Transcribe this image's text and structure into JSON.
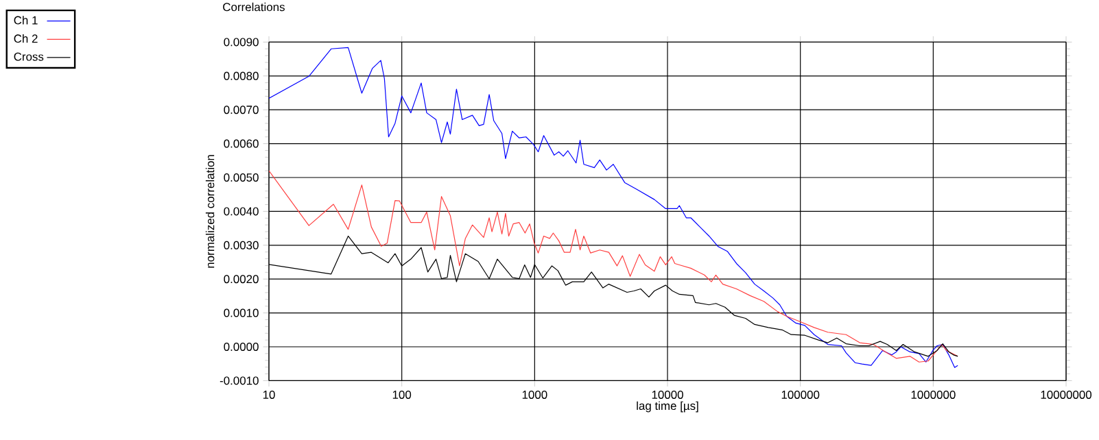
{
  "chart_data": {
    "type": "line",
    "title": "Correlations",
    "xlabel": "lag time [µs]",
    "ylabel": "normalized correlation",
    "log": "x",
    "grid": true,
    "legend": "top left",
    "xlim": [
      10,
      10000000
    ],
    "xticks": [
      10,
      100,
      1000,
      10000,
      100000,
      1000000,
      10000000
    ],
    "ylim": [
      -0.001,
      0.009
    ],
    "yticks": [
      {
        "value": -0.001,
        "label": "-0.0010"
      },
      {
        "value": 0,
        "label": "0.0000"
      },
      {
        "value": 0.001,
        "label": "0.0010"
      },
      {
        "value": 0.002,
        "label": "0.0020"
      },
      {
        "value": 0.003,
        "label": "0.0030"
      },
      {
        "value": 0.004,
        "label": "0.0040"
      },
      {
        "value": 0.005,
        "label": "0.0050"
      },
      {
        "value": 0.006,
        "label": "0.0060"
      },
      {
        "value": 0.007,
        "label": "0.0070"
      },
      {
        "value": 0.008,
        "label": "0.0080"
      },
      {
        "value": 0.009,
        "label": "0.0090"
      }
    ],
    "series": [
      {
        "name": "Ch 1",
        "color": "#0000ff",
        "x": [
          10,
          20,
          29.4,
          39.5,
          50,
          60,
          69.5,
          74,
          79.6,
          89,
          100,
          117,
          140,
          154,
          181,
          199,
          220,
          232,
          258,
          285,
          340,
          382,
          413,
          455,
          492,
          567,
          604,
          679,
          765,
          861,
          984,
          1064,
          1170,
          1403,
          1520,
          1644,
          1778,
          2051,
          2198,
          2344,
          2812,
          3090,
          3475,
          3908,
          4765,
          5808,
          7962,
          9683,
          10900,
          11800,
          12280,
          13840,
          14970,
          17540,
          20550,
          24050,
          28200,
          33040,
          38700,
          45300,
          53100,
          62200,
          70000,
          78900,
          92500,
          108000,
          127000,
          149000,
          161000,
          204000,
          221000,
          258000,
          291000,
          341000,
          416000,
          487000,
          527000,
          570000,
          668000,
          782000,
          881000,
          993000,
          1070000,
          1180000,
          1310000,
          1450000,
          1530000
        ],
        "values": [
          0.00734,
          0.00799,
          0.0088,
          0.00884,
          0.00749,
          0.00822,
          0.00846,
          0.00792,
          0.0062,
          0.0066,
          0.00741,
          0.00691,
          0.00779,
          0.00691,
          0.00671,
          0.00603,
          0.00664,
          0.00628,
          0.00761,
          0.00671,
          0.00684,
          0.00653,
          0.00657,
          0.00745,
          0.00668,
          0.0063,
          0.00556,
          0.00637,
          0.00617,
          0.0062,
          0.00597,
          0.00576,
          0.00624,
          0.00566,
          0.00576,
          0.00563,
          0.00579,
          0.00543,
          0.0061,
          0.00539,
          0.00529,
          0.00552,
          0.00522,
          0.00539,
          0.00485,
          0.00466,
          0.00435,
          0.00408,
          0.00408,
          0.00408,
          0.00417,
          0.00381,
          0.00381,
          0.00354,
          0.00327,
          0.00296,
          0.00282,
          0.00246,
          0.00219,
          0.00185,
          0.00165,
          0.00144,
          0.00124,
          0.0009,
          0.0007,
          0.00063,
          0.00036,
          0.00016,
          7e-05,
          3e-05,
          -0.00018,
          -0.00047,
          -0.00051,
          -0.00055,
          -0.00011,
          -0.00024,
          -0.00015,
          0,
          -0.00015,
          -0.0002,
          -0.00045,
          -0.00011,
          3e-05,
          7e-05,
          -0.00024,
          -0.00061,
          -0.00055
        ]
      },
      {
        "name": "Ch 2",
        "color": "#ff4040",
        "x": [
          10,
          20,
          30.6,
          39.5,
          50,
          59,
          70,
          77.6,
          89,
          96,
          117,
          140,
          154,
          177,
          199,
          232,
          272,
          301,
          340,
          413,
          455,
          477,
          524,
          567,
          604,
          638,
          690,
          765,
          847,
          917,
          993,
          1064,
          1170,
          1297,
          1380,
          1520,
          1671,
          1849,
          2032,
          2198,
          2344,
          2636,
          3090,
          3614,
          4169,
          4581,
          5236,
          6138,
          6797,
          7962,
          8817,
          9683,
          10740,
          11350,
          12280,
          14970,
          18970,
          21380,
          23120,
          26060,
          33040,
          41880,
          53100,
          67300,
          78900,
          100000,
          127000,
          161000,
          221000,
          280000,
          355000,
          450000,
          527000,
          668000,
          782000,
          916000,
          1030000,
          1160000,
          1260000,
          1360000,
          1530000
        ],
        "values": [
          0.0052,
          0.00358,
          0.00421,
          0.00347,
          0.00478,
          0.00354,
          0.00297,
          0.00306,
          0.00432,
          0.00431,
          0.00367,
          0.00367,
          0.00398,
          0.00286,
          0.00444,
          0.00387,
          0.00239,
          0.0032,
          0.0036,
          0.00323,
          0.00381,
          0.0034,
          0.00398,
          0.00333,
          0.00394,
          0.00327,
          0.00363,
          0.00367,
          0.00336,
          0.00363,
          0.00306,
          0.00277,
          0.00327,
          0.0032,
          0.00336,
          0.00313,
          0.00279,
          0.00279,
          0.00347,
          0.00286,
          0.00327,
          0.00277,
          0.00286,
          0.00279,
          0.00239,
          0.00269,
          0.00208,
          0.00273,
          0.00242,
          0.00223,
          0.00266,
          0.00242,
          0.00266,
          0.00246,
          0.00242,
          0.00232,
          0.00212,
          0.00192,
          0.00212,
          0.00185,
          0.00171,
          0.00151,
          0.00134,
          0.00104,
          0.0009,
          0.00074,
          0.00057,
          0.00043,
          0.00036,
          0.00012,
          7e-05,
          -0.00018,
          -0.00034,
          -0.00028,
          -0.00045,
          -0.00042,
          -0.00018,
          7e-05,
          -0.00011,
          -0.00018,
          -0.00028
        ]
      },
      {
        "name": "Cross",
        "color": "#000000",
        "x": [
          10,
          29.4,
          39.5,
          50,
          59,
          79,
          89,
          100,
          117,
          140,
          157,
          181,
          199,
          220,
          232,
          258,
          301,
          376,
          455,
          524,
          679,
          765,
          841,
          931,
          1000,
          1153,
          1349,
          1496,
          1710,
          1923,
          2344,
          2679,
          3266,
          3614,
          4955,
          5585,
          6281,
          7244,
          7962,
          9683,
          10900,
          12280,
          15560,
          16200,
          20550,
          23120,
          27100,
          31770,
          38700,
          45300,
          57400,
          72900,
          85300,
          108000,
          137000,
          161000,
          188000,
          221000,
          280000,
          328000,
          399000,
          450000,
          527000,
          593000,
          723000,
          916000,
          1070000,
          1180000,
          1310000,
          1420000,
          1530000
        ],
        "values": [
          0.00243,
          0.00215,
          0.00327,
          0.00275,
          0.00279,
          0.00248,
          0.00275,
          0.00239,
          0.00259,
          0.00293,
          0.00221,
          0.00259,
          0.00201,
          0.00205,
          0.0027,
          0.00192,
          0.00275,
          0.00252,
          0.00201,
          0.00259,
          0.00205,
          0.00201,
          0.00242,
          0.00205,
          0.00243,
          0.00203,
          0.00239,
          0.00225,
          0.00182,
          0.00192,
          0.00192,
          0.00221,
          0.00174,
          0.00185,
          0.00161,
          0.00165,
          0.00171,
          0.00147,
          0.00165,
          0.00182,
          0.00165,
          0.00155,
          0.00151,
          0.00131,
          0.00124,
          0.00128,
          0.00117,
          0.00093,
          0.00084,
          0.00066,
          0.00057,
          0.0005,
          0.00036,
          0.00034,
          0.0002,
          0.00012,
          0.00026,
          9e-05,
          3e-05,
          3e-05,
          0.00016,
          7e-05,
          -0.00011,
          7e-05,
          -0.00015,
          -0.00028,
          -0.00011,
          9e-05,
          -0.00015,
          -0.00024,
          -0.00028
        ]
      }
    ]
  }
}
